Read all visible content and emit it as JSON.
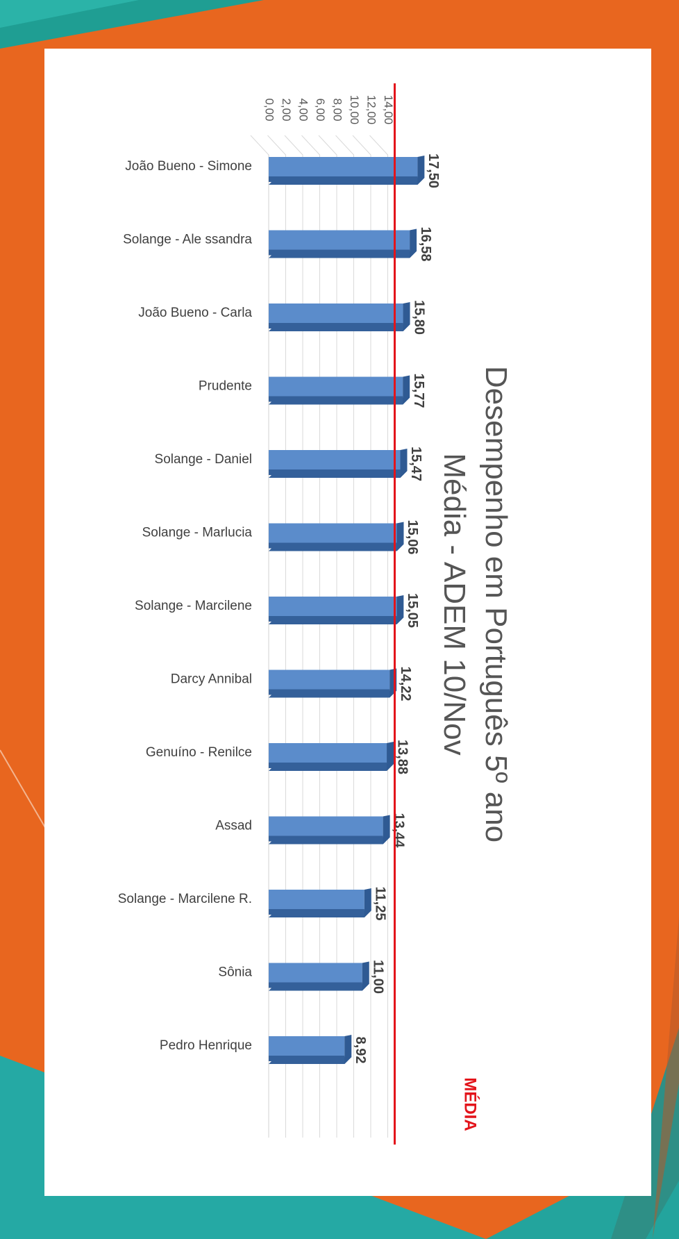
{
  "slide": {
    "title_line1": "Desempenho em Português 5º ano",
    "title_line2": "Média - ADEM 10/Nov"
  },
  "colors": {
    "background_orange": "#e8661f",
    "teal": "#1fa5a0",
    "bar_front": "#5b8ccb",
    "bar_bottom": "#34609a",
    "bar_side": "#2f5a93",
    "reference_line": "#e3141b"
  },
  "chart_data": {
    "type": "bar",
    "orientation": "rotated-90",
    "title": "Desempenho em Português 5º ano Média - ADEM 10/Nov",
    "categories": [
      "João Bueno - Simone",
      "Solange - Ale ssandra",
      "João Bueno - Carla",
      "Prudente",
      "Solange - Daniel",
      "Solange - Marlucia",
      "Solange - Marcilene",
      "Darcy Annibal",
      "Genuíno - Renilce",
      "Assad",
      "Solange - Marcilene R.",
      "Sônia",
      "Pedro Henrique"
    ],
    "values": [
      17.5,
      16.58,
      15.8,
      15.77,
      15.47,
      15.06,
      15.05,
      14.22,
      13.88,
      13.44,
      11.25,
      11.0,
      8.92
    ],
    "value_labels": [
      "17,50",
      "16,58",
      "15,80",
      "15,77",
      "15,47",
      "15,06",
      "15,05",
      "14,22",
      "13,88",
      "13,44",
      "11,25",
      "11,00",
      "8,92"
    ],
    "ticks": [
      "0,00",
      "2,00",
      "4,00",
      "6,00",
      "8,00",
      "10,00",
      "12,00",
      "14,00"
    ],
    "tick_values": [
      0,
      2,
      4,
      6,
      8,
      10,
      12,
      14
    ],
    "reference_line": {
      "label": "MÉDIA",
      "value": 14
    },
    "grid": true,
    "three_d": true
  }
}
